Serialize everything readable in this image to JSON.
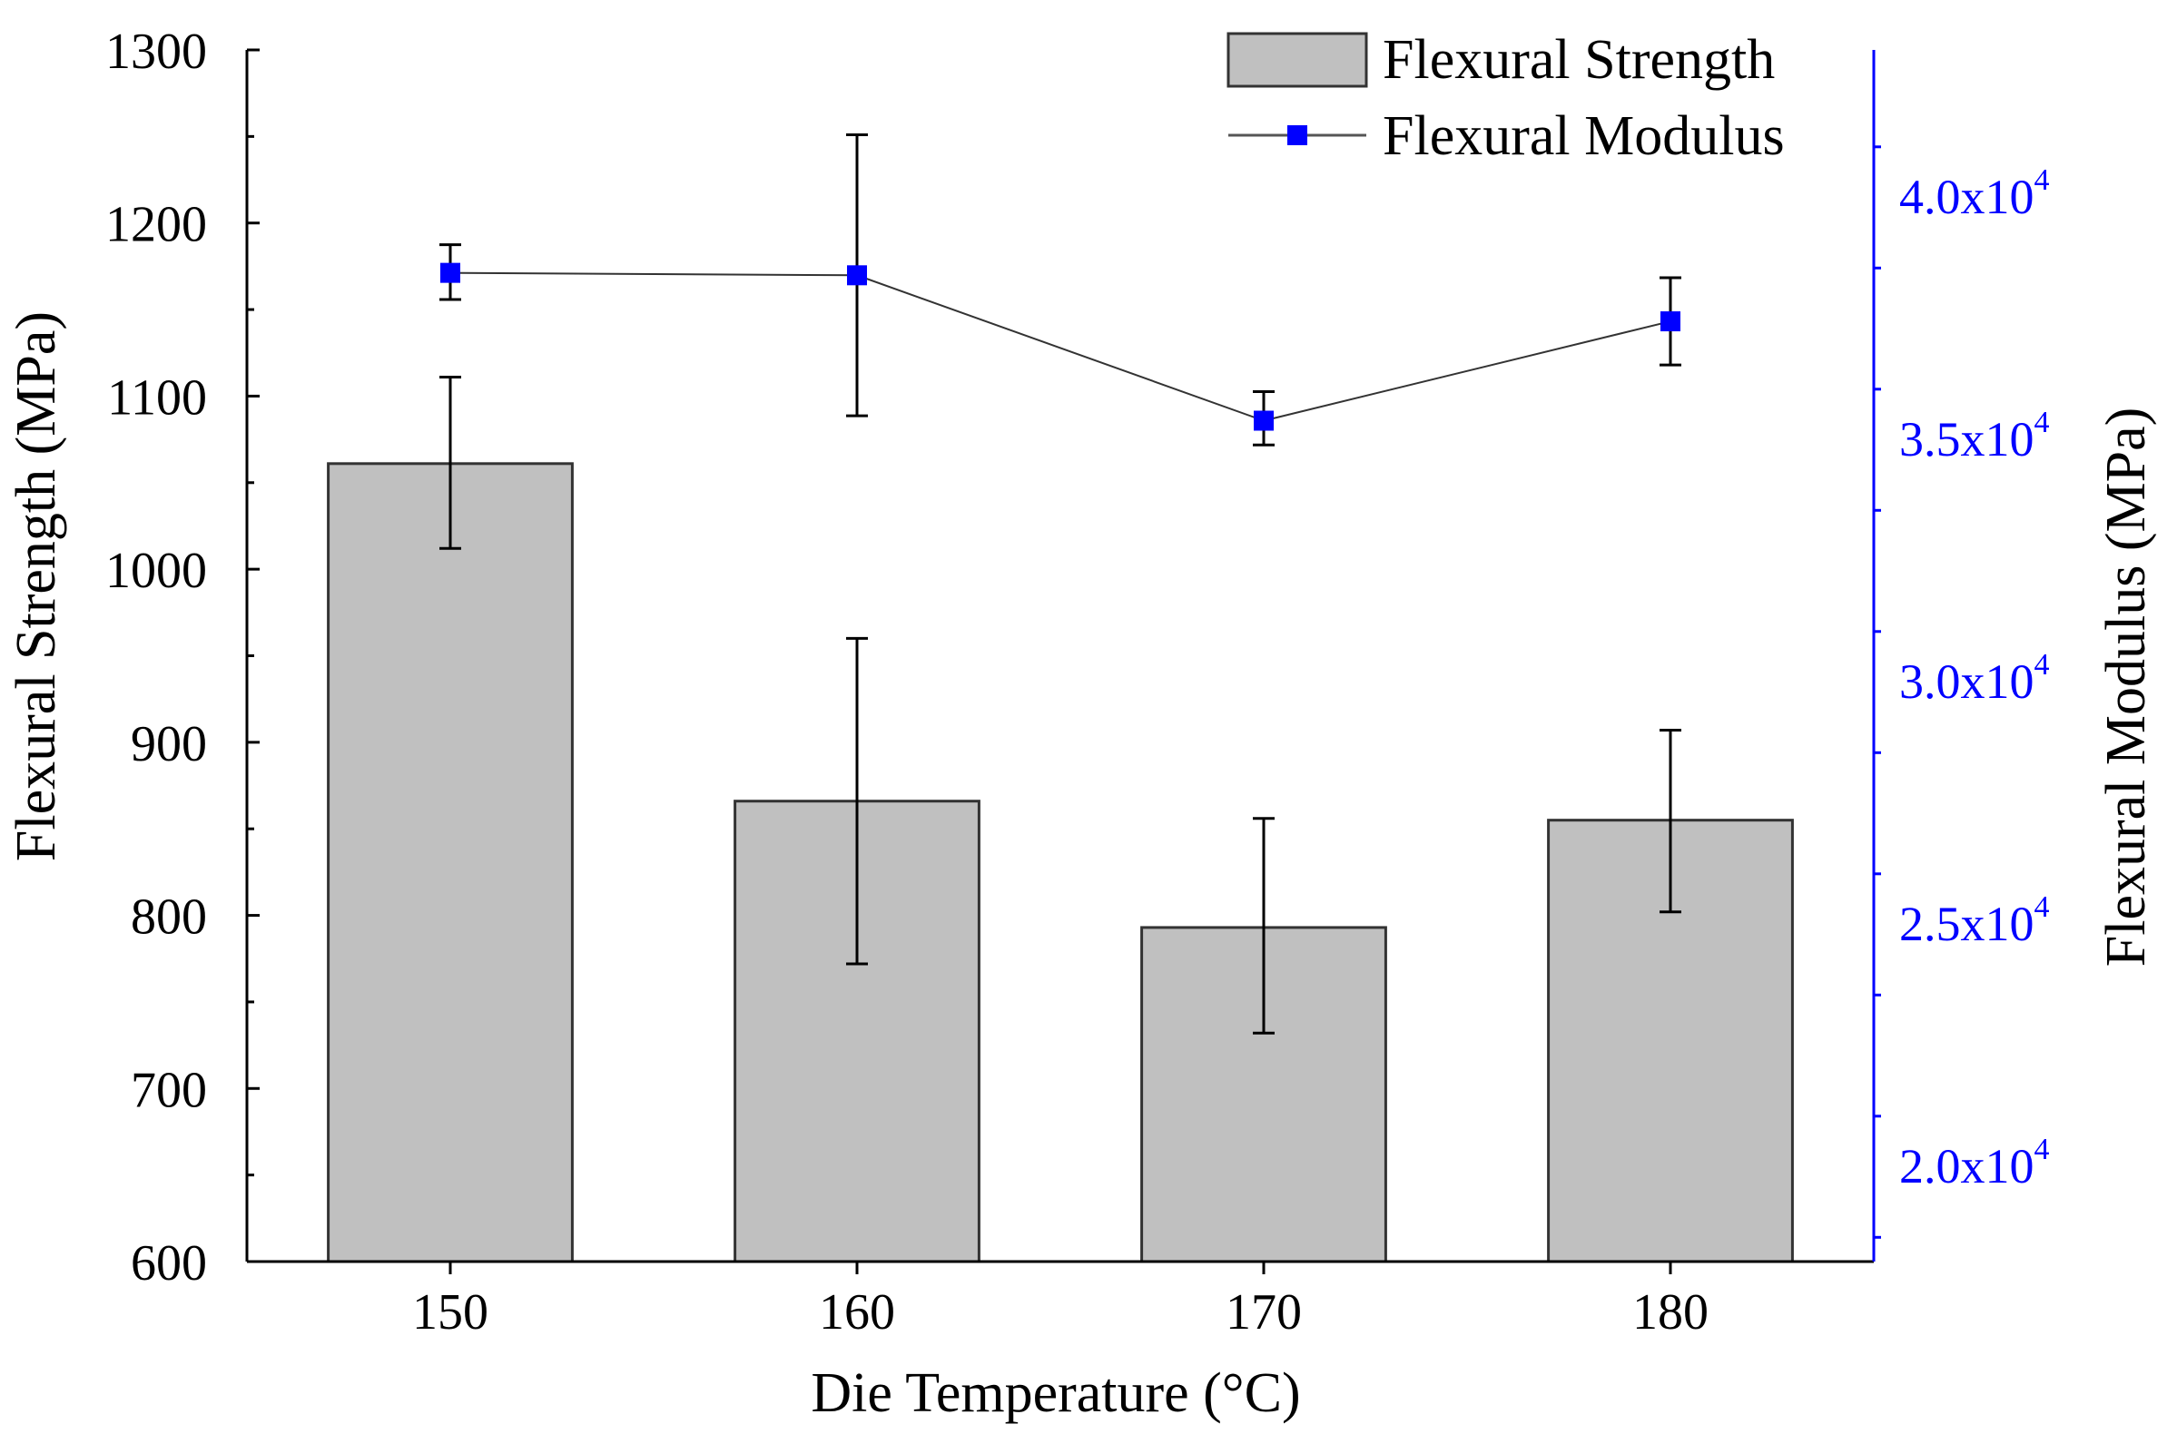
{
  "chart_data": {
    "type": "bar",
    "title": "",
    "categories": [
      "150",
      "160",
      "170",
      "180"
    ],
    "xlabel": "Die Temperature (°C)",
    "ylabel": "Flexural Strength (MPa)",
    "y2label": "Flexural Modulus (MPa)",
    "ylim": [
      600,
      1300
    ],
    "yticks": [
      600,
      700,
      800,
      900,
      1000,
      1100,
      1200,
      1300
    ],
    "y2lim": [
      18000,
      43000
    ],
    "y2ticks": [
      20000,
      25000,
      30000,
      35000,
      40000
    ],
    "y2tick_labels": [
      {
        "mantissa": "2.0x10",
        "exp": "4"
      },
      {
        "mantissa": "2.5x10",
        "exp": "4"
      },
      {
        "mantissa": "3.0x10",
        "exp": "4"
      },
      {
        "mantissa": "3.5x10",
        "exp": "4"
      },
      {
        "mantissa": "4.0x10",
        "exp": "4"
      }
    ],
    "legend_position": "top-right",
    "grid": false,
    "series": [
      {
        "name": "Flexural Strength",
        "type": "bar",
        "axis": "left",
        "values": [
          1061,
          866,
          793,
          855
        ],
        "error_low": [
          1012,
          772,
          732,
          802
        ],
        "error_high": [
          1111,
          960,
          856,
          907
        ],
        "color": "#c0c0c0"
      },
      {
        "name": "Flexural Modulus",
        "type": "line",
        "axis": "right",
        "values": [
          38400,
          38350,
          35350,
          37400
        ],
        "error_low": [
          37850,
          35450,
          34850,
          36500
        ],
        "error_high": [
          38980,
          41250,
          35950,
          38300
        ],
        "color": "#0000ff"
      }
    ],
    "colors": {
      "bar_fill": "#c0c0c0",
      "bar_stroke": "#333333",
      "marker": "#0000ff",
      "line": "#333333",
      "right_axis": "#0000ff",
      "left_axis": "#000000"
    }
  }
}
